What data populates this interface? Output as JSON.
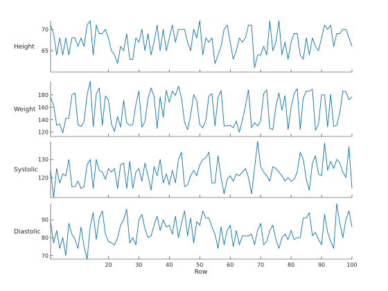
{
  "chart_data": {
    "type": "line",
    "xlabel": "Row",
    "xlim": [
      1,
      100
    ],
    "x_ticks": [
      20,
      30,
      40,
      50,
      60,
      70,
      80,
      90,
      100
    ],
    "line_color": "#0072BD",
    "grid": false,
    "x": [
      1,
      2,
      3,
      4,
      5,
      6,
      7,
      8,
      9,
      10,
      11,
      12,
      13,
      14,
      15,
      16,
      17,
      18,
      19,
      20,
      21,
      22,
      23,
      24,
      25,
      26,
      27,
      28,
      29,
      30,
      31,
      32,
      33,
      34,
      35,
      36,
      37,
      38,
      39,
      40,
      41,
      42,
      43,
      44,
      45,
      46,
      47,
      48,
      49,
      50,
      51,
      52,
      53,
      54,
      55,
      56,
      57,
      58,
      59,
      60,
      61,
      62,
      63,
      64,
      65,
      66,
      67,
      68,
      69,
      70,
      71,
      72,
      73,
      74,
      75,
      76,
      77,
      78,
      79,
      80,
      81,
      82,
      83,
      84,
      85,
      86,
      87,
      88,
      89,
      90,
      91,
      92,
      93,
      94,
      95,
      96,
      97,
      98,
      99,
      100
    ],
    "panels": [
      {
        "ylabel": "Height",
        "ylim": [
          60,
          72
        ],
        "yticks": [
          65,
          70
        ],
        "values": [
          71,
          69,
          64,
          68,
          64,
          68,
          64,
          68,
          68,
          66,
          68,
          66,
          71,
          72,
          64,
          71,
          69,
          69,
          70,
          68,
          65,
          64,
          62,
          66,
          65,
          69,
          63,
          63,
          68,
          67,
          70,
          65,
          69,
          64,
          67,
          71,
          65,
          70,
          65,
          68,
          71,
          67,
          70,
          70,
          70,
          67,
          65,
          70,
          68,
          72,
          64,
          68,
          67,
          68,
          62,
          64,
          66,
          70,
          71,
          67,
          63,
          65,
          68,
          67,
          68,
          71,
          71,
          61,
          64,
          64,
          66,
          64,
          72,
          65,
          67,
          72,
          64,
          67,
          63,
          67,
          69,
          69,
          64,
          63,
          68,
          64,
          68,
          66,
          65,
          68,
          71,
          70,
          71,
          66,
          69,
          69,
          70,
          70,
          68,
          66
        ]
      },
      {
        "ylabel": "Weight",
        "ylim": [
          113,
          201
        ],
        "yticks": [
          120,
          140,
          160,
          180
        ],
        "values": [
          176,
          163,
          131,
          133,
          119,
          142,
          142,
          180,
          183,
          132,
          129,
          137,
          180,
          202,
          129,
          181,
          191,
          131,
          178,
          172,
          133,
          121,
          145,
          128,
          171,
          135,
          131,
          132,
          164,
          186,
          128,
          137,
          174,
          191,
          177,
          126,
          177,
          144,
          187,
          168,
          186,
          179,
          194,
          175,
          136,
          124,
          147,
          180,
          171,
          132,
          127,
          139,
          178,
          182,
          130,
          176,
          187,
          130,
          130,
          131,
          127,
          138,
          120,
          139,
          162,
          188,
          127,
          135,
          130,
          138,
          182,
          188,
          126,
          124,
          161,
          183,
          155,
          179,
          124,
          160,
          182,
          190,
          124,
          175,
          186,
          186,
          189,
          123,
          133,
          180,
          180,
          128,
          181,
          129,
          131,
          151,
          186,
          185,
          172,
          177
        ]
      },
      {
        "ylabel": "Systolic",
        "ylim": [
          109,
          140
        ],
        "yticks": [
          120,
          130
        ],
        "values": [
          124,
          109,
          125,
          117,
          122,
          121,
          130,
          115,
          115,
          118,
          114,
          115,
          127,
          130,
          114,
          130,
          124,
          123,
          119,
          125,
          123,
          125,
          114,
          127,
          128,
          114,
          129,
          114,
          123,
          125,
          118,
          128,
          121,
          113,
          126,
          121,
          130,
          117,
          122,
          116,
          124,
          117,
          130,
          134,
          115,
          116,
          121,
          124,
          121,
          127,
          130,
          131,
          134,
          117,
          117,
          132,
          120,
          111,
          119,
          121,
          118,
          122,
          121,
          123,
          125,
          120,
          111,
          125,
          140,
          126,
          123,
          121,
          118,
          126,
          125,
          123,
          121,
          118,
          120,
          118,
          119,
          123,
          134,
          130,
          119,
          113,
          128,
          132,
          122,
          121,
          139,
          124,
          129,
          125,
          130,
          128,
          123,
          120,
          137,
          114
        ]
      },
      {
        "ylabel": "Diastolic",
        "ylim": [
          68,
          99
        ],
        "yticks": [
          70,
          80,
          90
        ],
        "values": [
          89,
          77,
          84,
          74,
          80,
          70,
          88,
          82,
          79,
          74,
          86,
          75,
          68,
          86,
          94,
          79,
          91,
          95,
          82,
          78,
          77,
          76,
          80,
          87,
          90,
          96,
          77,
          80,
          76,
          90,
          93,
          85,
          80,
          81,
          87,
          92,
          84,
          90,
          86,
          87,
          82,
          92,
          80,
          88,
          95,
          81,
          91,
          77,
          89,
          87,
          95,
          91,
          91,
          86,
          82,
          74,
          86,
          76,
          84,
          87,
          75,
          84,
          76,
          81,
          81,
          81,
          82,
          76,
          84,
          88,
          76,
          78,
          84,
          87,
          79,
          74,
          80,
          82,
          79,
          84,
          79,
          80,
          80,
          91,
          91,
          94,
          81,
          83,
          79,
          76,
          93,
          83,
          78,
          74,
          99,
          88,
          80,
          90,
          95,
          86
        ]
      }
    ]
  }
}
